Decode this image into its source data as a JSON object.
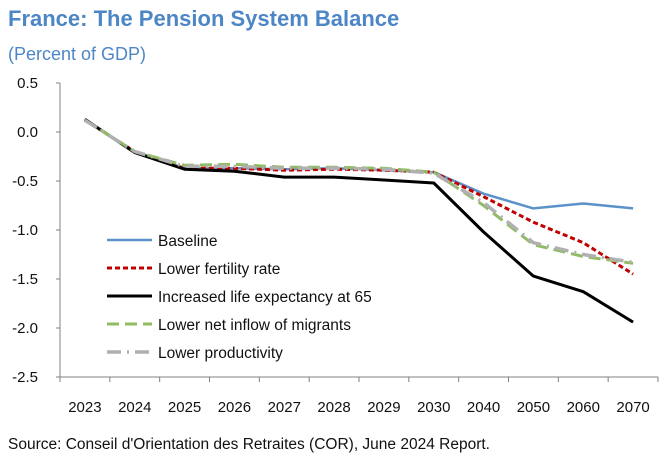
{
  "header": {
    "title": "France: The Pension System Balance",
    "subtitle": "(Percent of GDP)"
  },
  "footer": {
    "source": "Source: Conseil d'Orientation des Retraites (COR), June 2024  Report."
  },
  "colors": {
    "title": "#4d86c6",
    "axis": "#808080",
    "baseline": "#5b92c9",
    "fertility": "#c00000",
    "life_expectancy": "#000000",
    "migrants": "#8fbc62",
    "productivity": "#b0b0b0"
  },
  "chart_data": {
    "type": "line",
    "title": "France: The Pension System Balance",
    "subtitle": "(Percent of GDP)",
    "xlabel": "",
    "ylabel": "Percent of GDP",
    "categories": [
      "2023",
      "2024",
      "2025",
      "2026",
      "2027",
      "2028",
      "2029",
      "2030",
      "2040",
      "2050",
      "2060",
      "2070"
    ],
    "ylim": [
      -2.5,
      0.5
    ],
    "yticks": [
      0.5,
      0.0,
      -0.5,
      -1.0,
      -1.5,
      -2.0,
      -2.5
    ],
    "ytick_labels": [
      "0.5",
      "0.0",
      "-0.5",
      "-1.0",
      "-1.5",
      "-2.0",
      "-2.5"
    ],
    "grid": false,
    "legend_position": "bottom-left",
    "series": [
      {
        "name": "Baseline",
        "style": "solid",
        "values": [
          0.12,
          -0.2,
          -0.37,
          -0.37,
          -0.38,
          -0.37,
          -0.39,
          -0.41,
          -0.63,
          -0.78,
          -0.73,
          -0.78
        ]
      },
      {
        "name": "Lower fertility rate",
        "style": "dotted",
        "values": [
          0.12,
          -0.2,
          -0.37,
          -0.37,
          -0.39,
          -0.38,
          -0.39,
          -0.41,
          -0.66,
          -0.92,
          -1.13,
          -1.45
        ]
      },
      {
        "name": "Increased life expectancy at 65",
        "style": "solid-thick",
        "values": [
          0.13,
          -0.21,
          -0.38,
          -0.4,
          -0.46,
          -0.46,
          -0.49,
          -0.52,
          -1.02,
          -1.47,
          -1.63,
          -1.94
        ]
      },
      {
        "name": "Lower net inflow of migrants",
        "style": "dashed",
        "values": [
          0.12,
          -0.2,
          -0.34,
          -0.33,
          -0.36,
          -0.36,
          -0.37,
          -0.41,
          -0.75,
          -1.15,
          -1.27,
          -1.34
        ]
      },
      {
        "name": "Lower productivity",
        "style": "dash-dot",
        "values": [
          0.12,
          -0.2,
          -0.35,
          -0.35,
          -0.37,
          -0.37,
          -0.38,
          -0.42,
          -0.72,
          -1.13,
          -1.25,
          -1.33
        ]
      }
    ]
  }
}
